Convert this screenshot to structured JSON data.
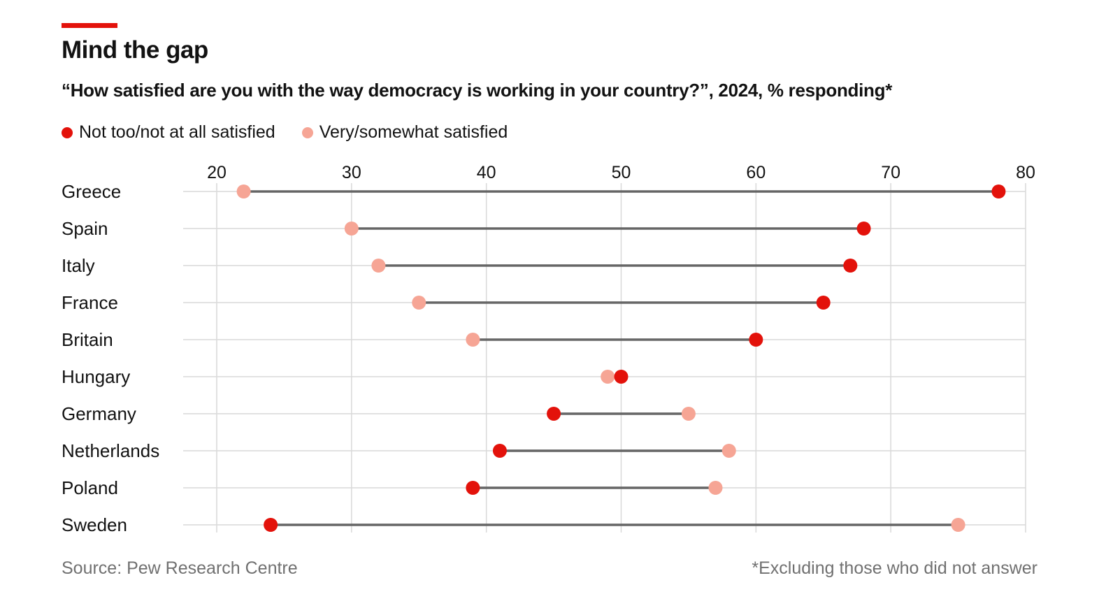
{
  "header": {
    "title": "Mind the gap",
    "subtitle": "“How satisfied are you with the way democracy is working in your country?”, 2024, % responding*"
  },
  "legend": [
    {
      "label": "Not too/not at all satisfied",
      "color": "#e3120b"
    },
    {
      "label": "Very/somewhat satisfied",
      "color": "#f6a595"
    }
  ],
  "footer": {
    "source": "Source: Pew Research Centre",
    "note": "*Excluding those who did not answer"
  },
  "colors": {
    "accent": "#e3120b",
    "not_satisfied": "#e3120b",
    "satisfied": "#f6a595",
    "connector": "#666666",
    "grid": "#d9d9d9"
  },
  "chart_data": {
    "type": "dumbbell",
    "categories": [
      "Greece",
      "Spain",
      "Italy",
      "France",
      "Britain",
      "Hungary",
      "Germany",
      "Netherlands",
      "Poland",
      "Sweden"
    ],
    "series": [
      {
        "name": "Not too/not at all satisfied",
        "values": [
          78,
          68,
          67,
          65,
          60,
          50,
          45,
          41,
          39,
          24
        ]
      },
      {
        "name": "Very/somewhat satisfied",
        "values": [
          22,
          30,
          32,
          35,
          39,
          49,
          55,
          58,
          57,
          75
        ]
      }
    ],
    "xticks": [
      20,
      30,
      40,
      50,
      60,
      70,
      80
    ],
    "xlim": [
      20,
      80
    ],
    "xaxis_position": "top",
    "grid": true,
    "legend_position": "top-left"
  }
}
